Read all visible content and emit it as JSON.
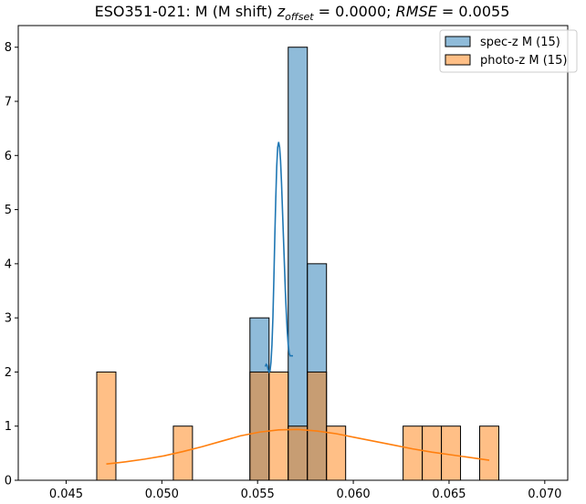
{
  "chart_data": {
    "type": "histogram",
    "title": "ESO351-021: M (M shift) z_offset = 0.0000; RMSE = 0.0055",
    "title_parts": {
      "prefix": "ESO351-021: M (M shift) ",
      "z": "z",
      "z_sub": "offset",
      "eq1": " = 0.0000; ",
      "rmse": "RMSE",
      "eq2": " = 0.0055"
    },
    "xlabel": "",
    "ylabel": "",
    "xlim": [
      0.0425,
      0.0712
    ],
    "ylim": [
      0,
      8.4
    ],
    "xticks": [
      "0.045",
      "0.050",
      "0.055",
      "0.060",
      "0.065",
      "0.070"
    ],
    "xtick_values": [
      0.045,
      0.05,
      0.055,
      0.06,
      0.065,
      0.07
    ],
    "yticks": [
      "0",
      "1",
      "2",
      "3",
      "4",
      "5",
      "6",
      "7",
      "8"
    ],
    "yticks_values": [
      0,
      1,
      2,
      3,
      4,
      5,
      6,
      7,
      8
    ],
    "grid": false,
    "legend_position": "top-right",
    "series": [
      {
        "name": "spec-z M (15)",
        "color": "#1f77b4",
        "bins": [
          {
            "x0": 0.0546,
            "x1": 0.0556,
            "count": 3
          },
          {
            "x0": 0.0556,
            "x1": 0.0566,
            "count": 0
          },
          {
            "x0": 0.0566,
            "x1": 0.0576,
            "count": 8
          },
          {
            "x0": 0.0576,
            "x1": 0.0586,
            "count": 4
          }
        ],
        "kde": {
          "x": [
            0.0554,
            0.05545,
            0.0555,
            0.05555,
            0.0556,
            0.05565,
            0.0557,
            0.05575,
            0.0558,
            0.05585,
            0.0559,
            0.05595,
            0.056,
            0.05605,
            0.0561,
            0.05615,
            0.0562,
            0.05625,
            0.0563,
            0.05635,
            0.0564,
            0.05645,
            0.0565,
            0.05655,
            0.0566,
            0.05665,
            0.0567,
            0.05675,
            0.0568,
            0.05685
          ],
          "y": [
            2.1,
            2.14,
            2.12,
            2.05,
            2.0,
            2.02,
            2.18,
            2.5,
            3.0,
            3.7,
            4.5,
            5.2,
            5.8,
            6.15,
            6.25,
            6.15,
            5.9,
            5.5,
            5.0,
            4.5,
            4.0,
            3.5,
            3.1,
            2.75,
            2.5,
            2.35,
            2.3,
            2.3,
            2.3,
            2.3
          ]
        }
      },
      {
        "name": "photo-z M (15)",
        "color": "#ff7f0e",
        "bins": [
          {
            "x0": 0.0466,
            "x1": 0.0476,
            "count": 2
          },
          {
            "x0": 0.0506,
            "x1": 0.0516,
            "count": 1
          },
          {
            "x0": 0.0546,
            "x1": 0.0556,
            "count": 2
          },
          {
            "x0": 0.0556,
            "x1": 0.0566,
            "count": 2
          },
          {
            "x0": 0.0566,
            "x1": 0.0576,
            "count": 1
          },
          {
            "x0": 0.0576,
            "x1": 0.0586,
            "count": 2
          },
          {
            "x0": 0.0586,
            "x1": 0.0596,
            "count": 1
          },
          {
            "x0": 0.0626,
            "x1": 0.0636,
            "count": 1
          },
          {
            "x0": 0.0636,
            "x1": 0.0646,
            "count": 1
          },
          {
            "x0": 0.0646,
            "x1": 0.0656,
            "count": 1
          },
          {
            "x0": 0.0666,
            "x1": 0.0676,
            "count": 1
          }
        ],
        "kde": {
          "x": [
            0.0471,
            0.0481,
            0.0491,
            0.0501,
            0.0511,
            0.0521,
            0.0531,
            0.0541,
            0.0551,
            0.0561,
            0.0571,
            0.0581,
            0.0591,
            0.0601,
            0.0611,
            0.0621,
            0.0631,
            0.0641,
            0.0651,
            0.0661,
            0.0671
          ],
          "y": [
            0.3,
            0.34,
            0.39,
            0.45,
            0.53,
            0.62,
            0.72,
            0.82,
            0.89,
            0.93,
            0.94,
            0.91,
            0.86,
            0.79,
            0.72,
            0.65,
            0.58,
            0.52,
            0.47,
            0.42,
            0.37
          ]
        }
      }
    ]
  }
}
